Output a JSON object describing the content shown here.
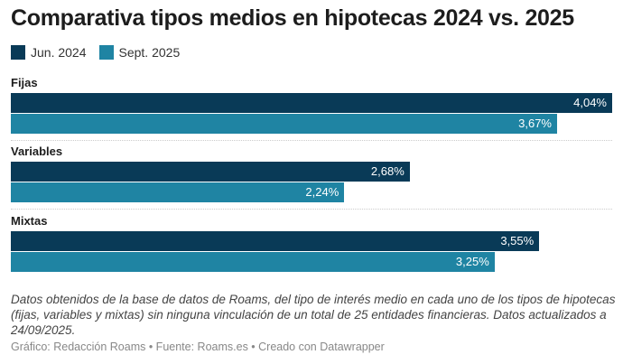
{
  "title": "Comparativa tipos medios en hipotecas 2024 vs. 2025",
  "colors": {
    "jun2024": "#093a57",
    "sept2025": "#1f84a3"
  },
  "chart_data": {
    "type": "bar",
    "orientation": "horizontal-grouped",
    "categories": [
      "Fijas",
      "Variables",
      "Mixtas"
    ],
    "series": [
      {
        "name": "Jun. 2024",
        "values": [
          4.04,
          2.68,
          3.55
        ],
        "labels": [
          "4,04%",
          "2,68%",
          "3,55%"
        ]
      },
      {
        "name": "Sept. 2025",
        "values": [
          3.67,
          2.24,
          3.25
        ],
        "labels": [
          "3,67%",
          "2,24%",
          "3,25%"
        ]
      }
    ],
    "xlim": [
      0,
      4.04
    ],
    "legend": "top-left"
  },
  "note": "Datos obtenidos de la base de datos de Roams, del tipo de interés medio en cada uno de los tipos de hipotecas (fijas, variables y mixtas) sin ninguna vinculación de un total de 25 entidades financieras. Datos actualizados a 24/09/2025.",
  "credit": "Gráfico: Redacción Roams • Fuente: Roams.es • Creado con Datawrapper"
}
